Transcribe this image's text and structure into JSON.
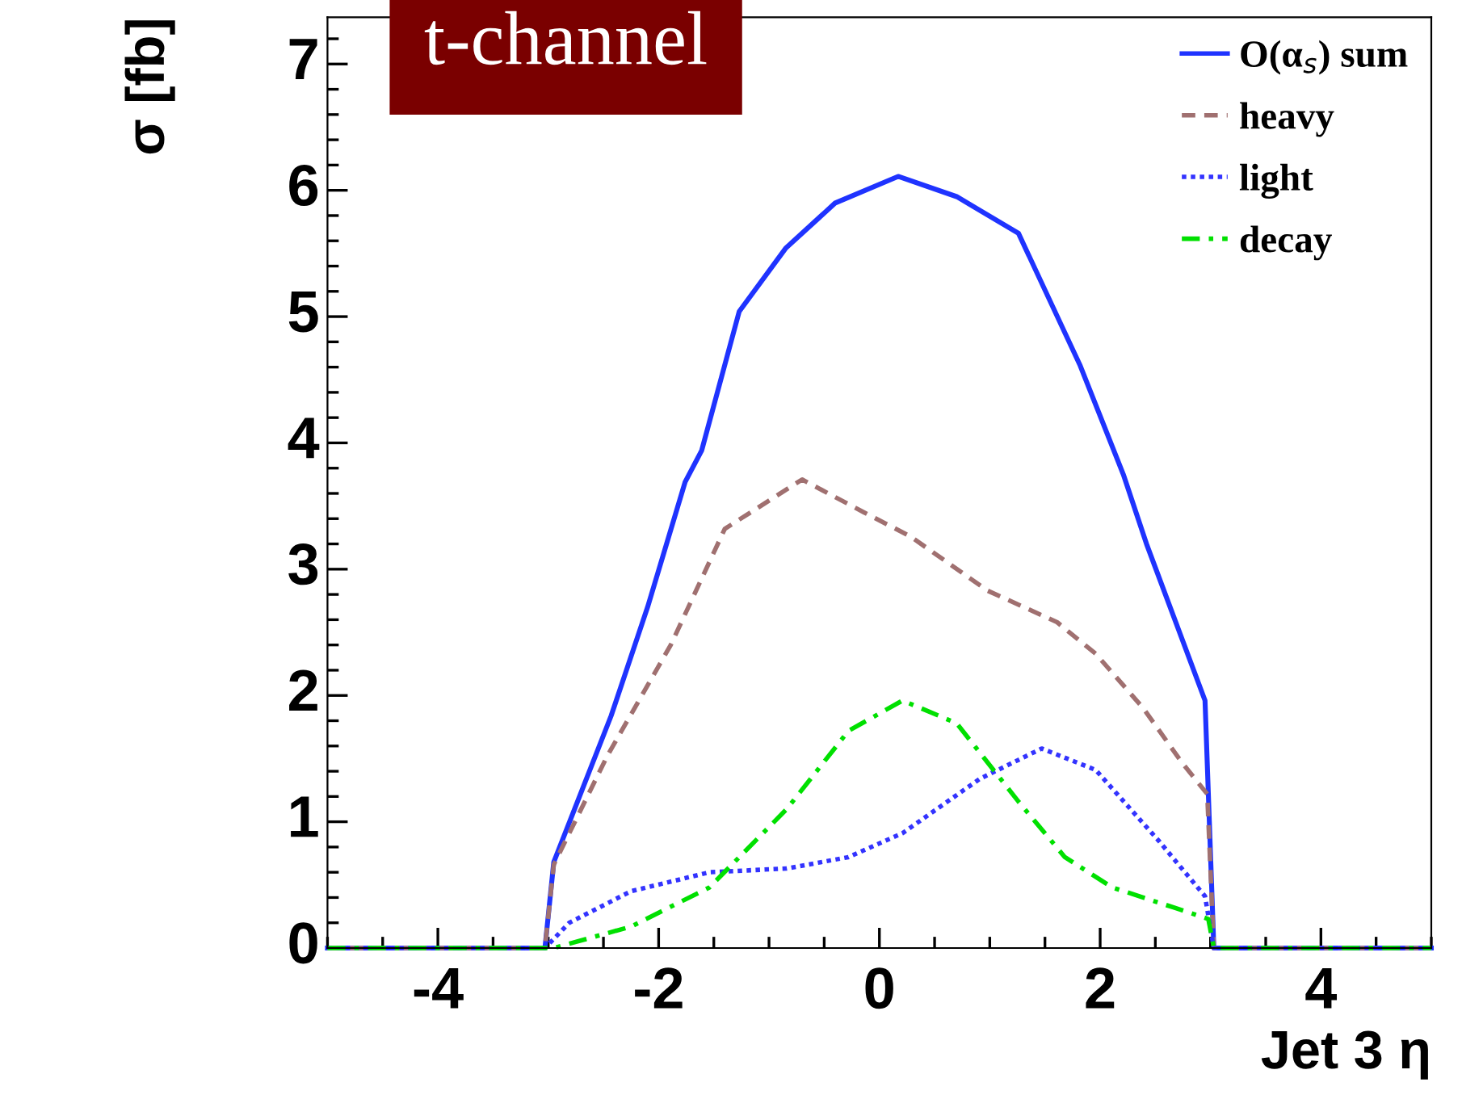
{
  "chart_data": {
    "type": "line",
    "title": "t-channel",
    "xlabel": "Jet 3 η",
    "ylabel": "σ [fb]",
    "xlim": [
      -5,
      5
    ],
    "ylim": [
      0,
      7.37
    ],
    "xticks": [
      -4,
      -2,
      0,
      2,
      4
    ],
    "yticks": [
      0,
      1,
      2,
      3,
      4,
      5,
      6,
      7
    ],
    "grid": false,
    "legend": "top right",
    "marker": "none",
    "series": [
      {
        "name": "O(α$_{s}$) sum",
        "color": "#1f33ff",
        "line_style": "solid",
        "x": [
          -5,
          -3.03,
          -2.95,
          -2.43,
          -2.1,
          -1.76,
          -1.61,
          -1.27,
          -0.85,
          -0.4,
          0.17,
          0.7,
          1.26,
          1.82,
          2.21,
          2.42,
          2.95,
          3.03,
          5
        ],
        "values": [
          0,
          0,
          0.68,
          1.84,
          2.7,
          3.69,
          3.94,
          5.04,
          5.54,
          5.9,
          6.11,
          5.95,
          5.66,
          4.61,
          3.75,
          3.2,
          1.96,
          0,
          0
        ]
      },
      {
        "name": "heavy",
        "color": "#a07070",
        "line_style": "dashed",
        "x": [
          -5,
          -3.03,
          -2.95,
          -2.46,
          -1.89,
          -1.4,
          -0.7,
          -0.14,
          0.28,
          0.98,
          1.61,
          1.96,
          2.39,
          2.74,
          2.97,
          3.03,
          5
        ],
        "values": [
          0,
          0,
          0.66,
          1.53,
          2.4,
          3.32,
          3.71,
          3.45,
          3.26,
          2.83,
          2.58,
          2.33,
          1.9,
          1.47,
          1.22,
          0,
          0
        ]
      },
      {
        "name": "light",
        "color": "#3333ff",
        "line_style": "dotted",
        "x": [
          -5,
          -3.03,
          -2.81,
          -2.25,
          -1.54,
          -0.84,
          -0.28,
          0.21,
          0.91,
          1.47,
          1.96,
          2.53,
          2.95,
          3.03,
          5
        ],
        "values": [
          0,
          0,
          0.2,
          0.45,
          0.6,
          0.63,
          0.72,
          0.91,
          1.34,
          1.58,
          1.41,
          0.85,
          0.41,
          0,
          0
        ]
      },
      {
        "name": "decay",
        "color": "#00e000",
        "line_style": "dashdot",
        "x": [
          -5,
          -2.95,
          -2.25,
          -1.54,
          -0.84,
          -0.28,
          0.21,
          0.7,
          1.26,
          1.68,
          2.11,
          2.67,
          2.98,
          3.03,
          5
        ],
        "values": [
          0,
          0,
          0.17,
          0.48,
          1.1,
          1.72,
          1.96,
          1.78,
          1.16,
          0.72,
          0.48,
          0.32,
          0.23,
          0,
          0
        ]
      }
    ]
  }
}
